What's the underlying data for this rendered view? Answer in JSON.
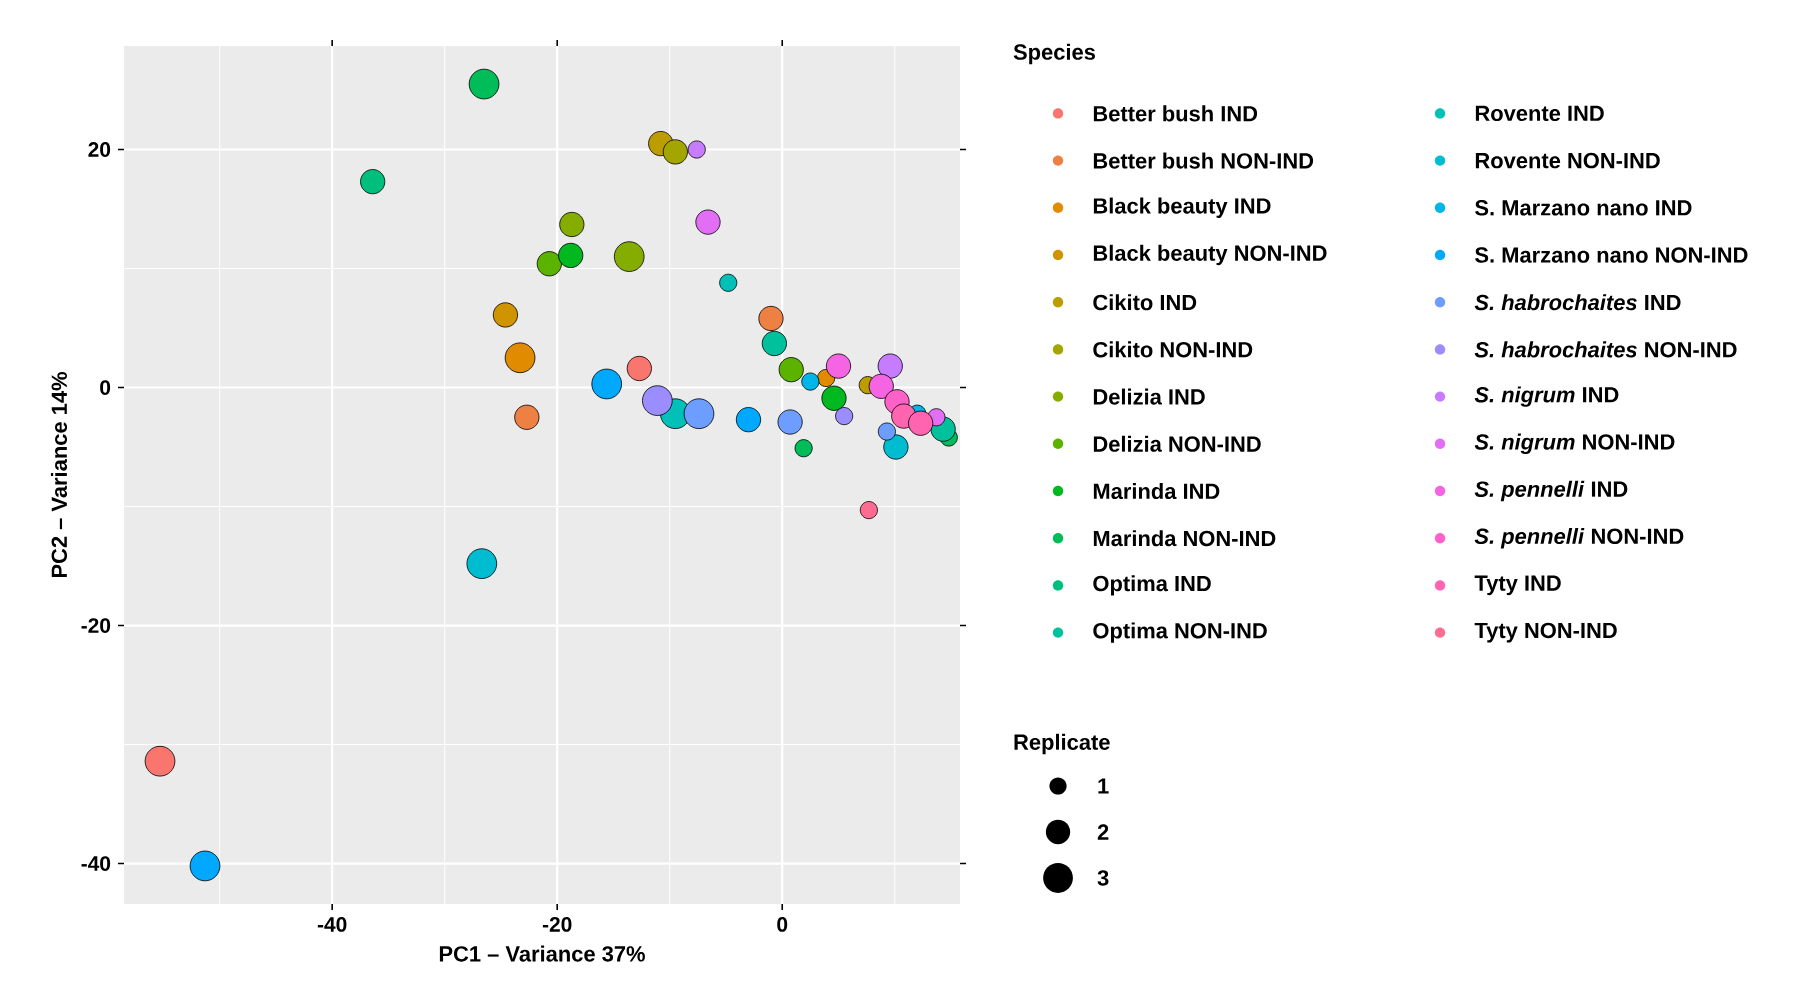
{
  "chart_data": {
    "type": "bubble",
    "xlabel": "PC1 – Variance 37%",
    "ylabel": "PC2 – Variance 14%",
    "legend_title": "Species",
    "annotations": [
      "Replicate"
    ],
    "xlim": [
      -58.5,
      15.8
    ],
    "ylim": [
      -43.4,
      28.7
    ],
    "xticks": [
      -40,
      -20,
      0
    ],
    "yticks": [
      -40,
      -20,
      0,
      20
    ],
    "grid": true,
    "legend": "right",
    "size_legend": [
      1,
      2,
      3
    ],
    "series": [
      {
        "name": "Better bush IND",
        "color": "#f8766d",
        "x": [
          -12.7,
          -55.3
        ],
        "values": [
          1.6,
          -31.4
        ],
        "sizes": [
          2,
          3
        ]
      },
      {
        "name": "Better bush NON-IND",
        "color": "#ee8044",
        "x": [
          -22.7,
          -1.0
        ],
        "values": [
          -2.5,
          5.8
        ],
        "sizes": [
          2,
          2
        ]
      },
      {
        "name": "Black beauty IND",
        "color": "#e08b00",
        "x": [
          -23.3,
          3.9
        ],
        "values": [
          2.5,
          0.8
        ],
        "sizes": [
          3,
          1
        ]
      },
      {
        "name": "Black beauty NON-IND",
        "color": "#cf9400",
        "x": [
          -24.6
        ],
        "values": [
          6.1
        ],
        "sizes": [
          2
        ]
      },
      {
        "name": "Cikito IND",
        "color": "#bb9d00",
        "x": [
          -10.8,
          7.6
        ],
        "values": [
          20.5,
          0.2
        ],
        "sizes": [
          2,
          1
        ]
      },
      {
        "name": "Cikito NON-IND",
        "color": "#a3a500",
        "x": [
          -9.5
        ],
        "values": [
          19.8
        ],
        "sizes": [
          2
        ]
      },
      {
        "name": "Delizia IND",
        "color": "#85ad00",
        "x": [
          -13.6,
          -18.7
        ],
        "values": [
          11.0,
          13.7
        ],
        "sizes": [
          3,
          2
        ]
      },
      {
        "name": "Delizia NON-IND",
        "color": "#5bb300",
        "x": [
          -20.7,
          0.8
        ],
        "values": [
          10.4,
          1.5
        ],
        "sizes": [
          2,
          2
        ]
      },
      {
        "name": "Marinda IND",
        "color": "#00b81f",
        "x": [
          -18.8,
          4.6
        ],
        "values": [
          11.1,
          -0.9
        ],
        "sizes": [
          2,
          2
        ]
      },
      {
        "name": "Marinda NON-IND",
        "color": "#00bc59",
        "x": [
          -26.5,
          1.9,
          14.8
        ],
        "values": [
          25.5,
          -5.1,
          -4.2
        ],
        "sizes": [
          3,
          1,
          1
        ]
      },
      {
        "name": "Optima IND",
        "color": "#00bf7d",
        "x": [
          -36.4
        ],
        "values": [
          17.3
        ],
        "sizes": [
          2
        ]
      },
      {
        "name": "Optima NON-IND",
        "color": "#00c19c",
        "x": [
          -0.7,
          14.3
        ],
        "values": [
          3.7,
          -3.5
        ],
        "sizes": [
          2,
          2
        ]
      },
      {
        "name": "Rovente IND",
        "color": "#00c0b8",
        "x": [
          -4.8,
          -9.5
        ],
        "values": [
          8.8,
          -2.2
        ],
        "sizes": [
          1,
          3
        ]
      },
      {
        "name": "Rovente NON-IND",
        "color": "#00bcd1",
        "x": [
          -26.7,
          10.1
        ],
        "values": [
          -14.8,
          -5.0
        ],
        "sizes": [
          3,
          2
        ]
      },
      {
        "name": "S. Marzano nano IND",
        "color": "#00b5e7",
        "x": [
          2.5,
          12.0
        ],
        "values": [
          0.5,
          -2.2
        ],
        "sizes": [
          1,
          1
        ]
      },
      {
        "name": "S. Marzano nano NON-IND",
        "color": "#00a9ff",
        "x": [
          -15.6,
          -3.0,
          -51.3
        ],
        "values": [
          0.3,
          -2.7,
          -40.2
        ],
        "sizes": [
          3,
          2,
          3
        ]
      },
      {
        "name": "*S. habrochaites* IND",
        "color": "#6d9eff",
        "x": [
          -7.4,
          0.7,
          9.3
        ],
        "values": [
          -2.2,
          -2.9,
          -3.7
        ],
        "sizes": [
          3,
          2,
          1
        ]
      },
      {
        "name": "*S. habrochaites* NON-IND",
        "color": "#9c8dff",
        "x": [
          -11.1,
          5.5
        ],
        "values": [
          -1.1,
          -2.4
        ],
        "sizes": [
          3,
          1
        ]
      },
      {
        "name": "*S. nigrum* IND",
        "color": "#c77cff",
        "x": [
          -7.6,
          9.6
        ],
        "values": [
          20.0,
          1.8
        ],
        "sizes": [
          1,
          2
        ]
      },
      {
        "name": "*S. nigrum* NON-IND",
        "color": "#e36ef6",
        "x": [
          -6.6,
          13.7
        ],
        "values": [
          13.9,
          -2.5
        ],
        "sizes": [
          2,
          1
        ]
      },
      {
        "name": "*S. pennelli* IND",
        "color": "#f564e3",
        "x": [
          5.0,
          8.8
        ],
        "values": [
          1.8,
          0.1
        ],
        "sizes": [
          2,
          2
        ]
      },
      {
        "name": "*S. pennelli* NON-IND",
        "color": "#ff61c9",
        "x": [
          10.2
        ],
        "values": [
          -1.2
        ],
        "sizes": [
          2
        ]
      },
      {
        "name": "Tyty IND",
        "color": "#ff64b0",
        "x": [
          10.8,
          12.3
        ],
        "values": [
          -2.4,
          -3.0
        ],
        "sizes": [
          2,
          2
        ]
      },
      {
        "name": "Tyty NON-IND",
        "color": "#ff6c91",
        "x": [
          7.7
        ],
        "values": [
          -10.3
        ],
        "sizes": [
          1
        ]
      }
    ]
  }
}
